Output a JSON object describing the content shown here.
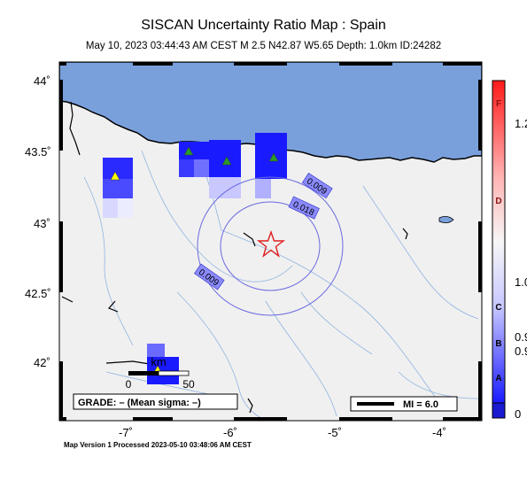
{
  "header": {
    "title": "SISCAN Uncertainty Ratio Map : Spain",
    "subtitle": "May 10, 2023 03:44:43 AM CEST   M 2.5   N42.87 W5.65   Depth: 1.0km   ID:24282"
  },
  "axes": {
    "lat_ticks": [
      "44˚",
      "43.5˚",
      "43˚",
      "42.5˚",
      "42˚"
    ],
    "lon_ticks": [
      "-7˚",
      "-6˚",
      "-5˚",
      "-4˚"
    ]
  },
  "contours": [
    "0.009",
    "0.018",
    "0.009"
  ],
  "scalebar": {
    "unit": "km",
    "min": "0",
    "max": "50"
  },
  "grade_text": "GRADE: – (Mean sigma: –)",
  "legend": {
    "mi_text": "MI = 6.0"
  },
  "colorbar": {
    "letters": [
      "F",
      "D",
      "C",
      "B",
      "A"
    ],
    "values": [
      "1.2",
      "1.0",
      "0.9",
      "0.9",
      "0"
    ]
  },
  "footer": "Map Version 1 Processed 2023-05-10 03:48:06 AM CEST",
  "colors": {
    "sea": "#7aa0dc",
    "land": "#f0f0f0",
    "station": "#1a1aff",
    "epicenter": "#e02020"
  }
}
